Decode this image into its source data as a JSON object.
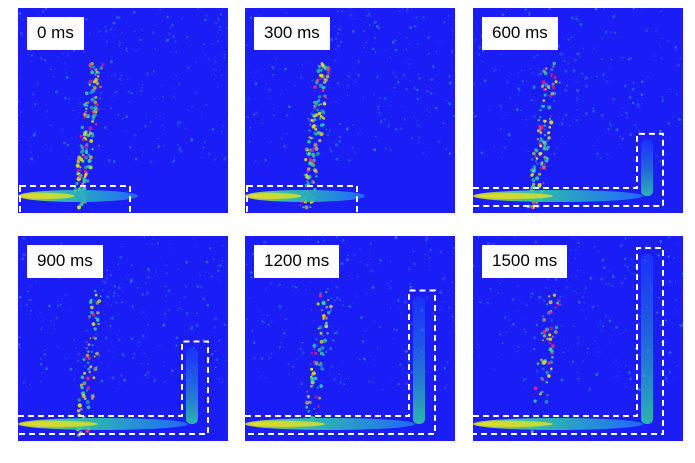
{
  "panels": [
    {
      "label": "0 ms",
      "vertical_fill": 0.0,
      "spray_intensity": 1.0
    },
    {
      "label": "300 ms",
      "vertical_fill": 0.0,
      "spray_intensity": 0.9
    },
    {
      "label": "600 ms",
      "vertical_fill": 0.33,
      "spray_intensity": 0.75
    },
    {
      "label": "900 ms",
      "vertical_fill": 0.45,
      "spray_intensity": 0.5
    },
    {
      "label": "1200 ms",
      "vertical_fill": 0.75,
      "spray_intensity": 0.45
    },
    {
      "label": "1500 ms",
      "vertical_fill": 1.0,
      "spray_intensity": 0.35
    }
  ],
  "colors": {
    "background": "#1a1df5",
    "dashed_outline": "#ffffff",
    "jet_core": "#e8e020",
    "jet_mid": "#30d0a0",
    "jet_edge": "#2070ff",
    "spray_hot": "#ff2070"
  }
}
